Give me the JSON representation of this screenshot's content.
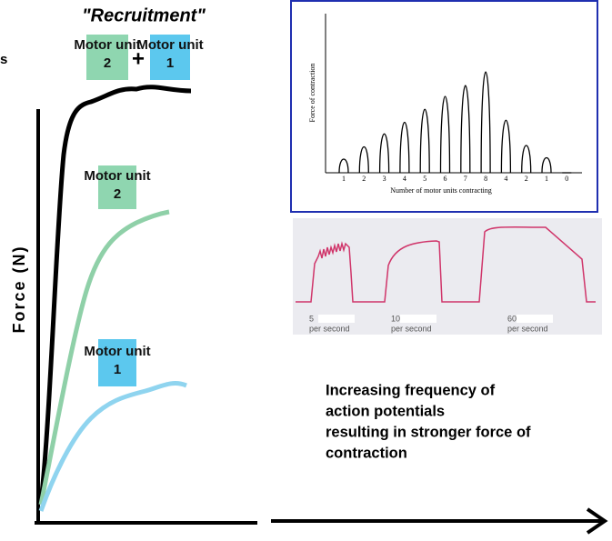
{
  "left_graph": {
    "title": "\"Recruitment\"",
    "y_label": "Force (N)",
    "cut_text": "s",
    "top_label_left": "Motor unit 2",
    "plus": "+",
    "top_label_right": "Motor unit 1",
    "middle_label": "Motor unit 2",
    "bottom_label": "Motor unit 1"
  },
  "inset_chart": {
    "y_label": "Force of contraction",
    "x_label": "Number of motor units contracting",
    "categories": [
      "1",
      "2",
      "3",
      "4",
      "5",
      "6",
      "7",
      "8",
      "4",
      "2",
      "1",
      "0"
    ],
    "values": [
      20,
      38,
      57,
      74,
      93,
      112,
      128,
      148,
      77,
      40,
      22,
      0
    ],
    "ylim": [
      0,
      160
    ]
  },
  "frequency_panel": {
    "labels": [
      [
        "5",
        "per second"
      ],
      [
        "10",
        "per second"
      ],
      [
        "60",
        "per second"
      ]
    ]
  },
  "caption": [
    "Increasing frequency of",
    "action potentials",
    "resulting in stronger force of",
    "contraction"
  ]
}
